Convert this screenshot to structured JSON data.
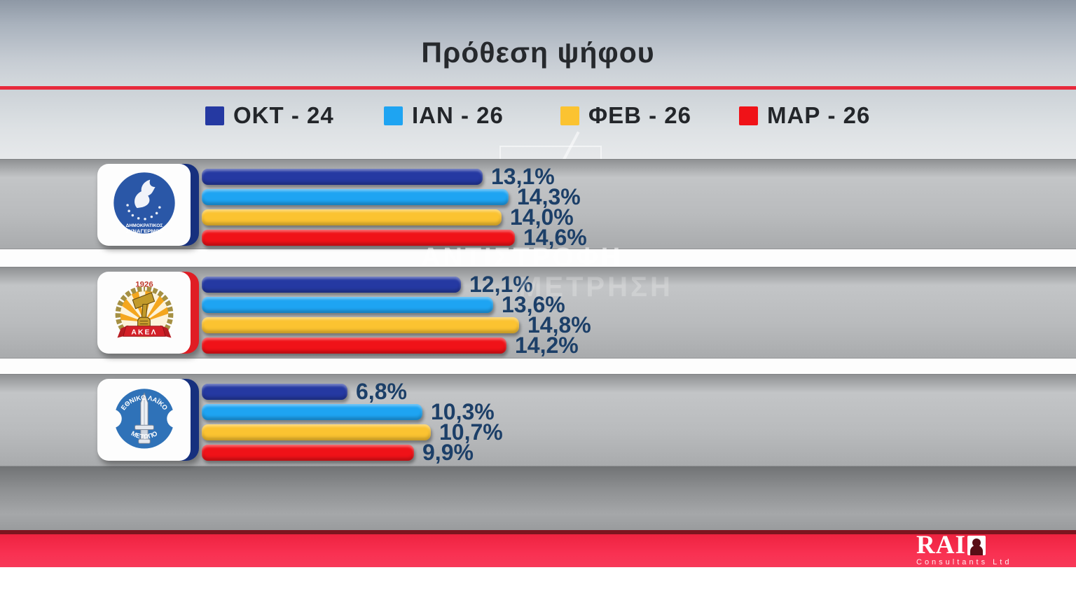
{
  "title": "Πρόθεση ψήφου",
  "legend": [
    {
      "label": "ΟΚΤ - 24",
      "color": "#2539a2"
    },
    {
      "label": "ΙΑΝ - 26",
      "color": "#1ea4f2"
    },
    {
      "label": "ΦΕΒ - 26",
      "color": "#fbc331"
    },
    {
      "label": "ΜΑΡ - 26",
      "color": "#f01218"
    }
  ],
  "parties": [
    {
      "name": "ΔΗΜΟΚΡΑΤΙΚΟΣ ΣΥΝΑΓΕΡΜΟΣ",
      "accent": "#16307e",
      "logo_text_top": "ΔΗΜΟΚΡΑΤΙΚΟΣ",
      "logo_text_bottom": "ΣΥΝΑΓΕΡΜΟΣ",
      "bars": [
        {
          "period": "ΟΚΤ - 24",
          "color": "#2539a2",
          "value": 13.1,
          "label": "13,1%"
        },
        {
          "period": "ΙΑΝ - 26",
          "color": "#1ea4f2",
          "value": 14.3,
          "label": "14,3%"
        },
        {
          "period": "ΦΕΒ - 26",
          "color": "#fbc331",
          "value": 14.0,
          "label": "14,0%"
        },
        {
          "period": "ΜΑΡ - 26",
          "color": "#f01218",
          "value": 14.6,
          "label": "14,6%"
        }
      ]
    },
    {
      "name": "ΑΚΕΛ",
      "accent": "#e01d24",
      "logo_year": "1926",
      "logo_text": "ΑΚΕΛ",
      "bars": [
        {
          "period": "ΟΚΤ - 24",
          "color": "#2539a2",
          "value": 12.1,
          "label": "12,1%"
        },
        {
          "period": "ΙΑΝ - 26",
          "color": "#1ea4f2",
          "value": 13.6,
          "label": "13,6%"
        },
        {
          "period": "ΦΕΒ - 26",
          "color": "#fbc331",
          "value": 14.8,
          "label": "14,8%"
        },
        {
          "period": "ΜΑΡ - 26",
          "color": "#f01218",
          "value": 14.2,
          "label": "14,2%"
        }
      ]
    },
    {
      "name": "ΕΘΝΙΚΟ ΛΑΪΚΟ ΜΕΤΩΠΟ",
      "accent": "#16307e",
      "logo_text_top": "ΕΘΝΙΚΟ ΛΑΪΚΟ",
      "logo_text_bottom": "ΜΕΤΩΠΟ",
      "bars": [
        {
          "period": "ΟΚΤ - 24",
          "color": "#2539a2",
          "value": 6.8,
          "label": "6,8%"
        },
        {
          "period": "ΙΑΝ - 26",
          "color": "#1ea4f2",
          "value": 10.3,
          "label": "10,3%"
        },
        {
          "period": "ΦΕΒ - 26",
          "color": "#fbc331",
          "value": 10.7,
          "label": "10,7%"
        },
        {
          "period": "ΜΑΡ - 26",
          "color": "#f01218",
          "value": 9.9,
          "label": "9,9%"
        }
      ]
    }
  ],
  "watermark": {
    "line1": "ΑΝΤΙΣΤΡΟΦΗ",
    "line2": "ΜΕΤΡΗΣΗ"
  },
  "branding": {
    "name": "RAI",
    "subtitle": "Consultants Ltd"
  },
  "chart_data": {
    "type": "bar",
    "orientation": "horizontal",
    "title": "Πρόθεση ψήφου",
    "unit": "%",
    "categories": [
      "ΔΗΜΟΚΡΑΤΙΚΟΣ ΣΥΝΑΓΕΡΜΟΣ",
      "ΑΚΕΛ",
      "ΕΘΝΙΚΟ ΛΑΪΚΟ ΜΕΤΩΠΟ"
    ],
    "series": [
      {
        "name": "ΟΚΤ - 24",
        "color": "#2539a2",
        "values": [
          13.1,
          12.1,
          6.8
        ]
      },
      {
        "name": "ΙΑΝ - 26",
        "color": "#1ea4f2",
        "values": [
          14.3,
          13.6,
          10.3
        ]
      },
      {
        "name": "ΦΕΒ - 26",
        "color": "#fbc331",
        "values": [
          14.0,
          14.8,
          10.7
        ]
      },
      {
        "name": "ΜΑΡ - 26",
        "color": "#f01218",
        "values": [
          14.6,
          14.2,
          9.9
        ]
      }
    ],
    "value_labels": [
      [
        "13,1%",
        "14,3%",
        "14,0%",
        "14,6%"
      ],
      [
        "12,1%",
        "13,6%",
        "14,8%",
        "14,2%"
      ],
      [
        "6,8%",
        "10,3%",
        "10,7%",
        "9,9%"
      ]
    ],
    "xlim": [
      0,
      16
    ],
    "grid": false,
    "legend_position": "top"
  }
}
